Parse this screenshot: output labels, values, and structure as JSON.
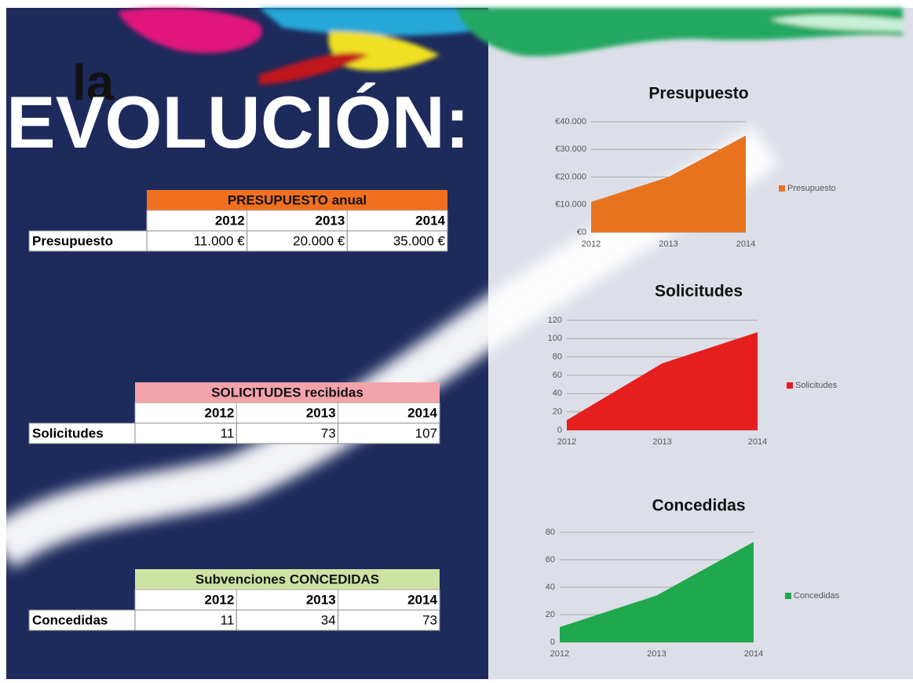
{
  "heading": {
    "line1": "la",
    "line2": "EVOLUCIÓN:"
  },
  "tables": [
    {
      "title": "PRESUPUESTO anual",
      "header_color": "#f07020",
      "columns": [
        "2012",
        "2013",
        "2014"
      ],
      "row_label": "Presupuesto",
      "cells": [
        "11.000 €",
        "20.000 €",
        "35.000 €"
      ]
    },
    {
      "title": "SOLICITUDES recibidas",
      "header_color": "#f4a3ab",
      "columns": [
        "2012",
        "2013",
        "2014"
      ],
      "row_label": "Solicitudes",
      "cells": [
        "11",
        "73",
        "107"
      ]
    },
    {
      "title": "Subvenciones CONCEDIDAS",
      "header_color": "#cde3a4",
      "columns": [
        "2012",
        "2013",
        "2014"
      ],
      "row_label": "Concedidas",
      "cells": [
        "11",
        "34",
        "73"
      ]
    }
  ],
  "chart_data": [
    {
      "type": "area",
      "title": "Presupuesto",
      "categories": [
        "2012",
        "2013",
        "2014"
      ],
      "series": [
        {
          "name": "Presupuesto",
          "color": "#e8731e",
          "values": [
            11000,
            20000,
            35000
          ]
        }
      ],
      "ylim": [
        0,
        40000
      ],
      "yticks": [
        {
          "value": 0,
          "label": "€0"
        },
        {
          "value": 10000,
          "label": "€10.000"
        },
        {
          "value": 20000,
          "label": "€20.000"
        },
        {
          "value": 30000,
          "label": "€30.000"
        },
        {
          "value": 40000,
          "label": "€40.000"
        }
      ],
      "grid": true,
      "legend": "right"
    },
    {
      "type": "area",
      "title": "Solicitudes",
      "categories": [
        "2012",
        "2013",
        "2014"
      ],
      "series": [
        {
          "name": "Solicitudes",
          "color": "#e61e1e",
          "values": [
            11,
            73,
            107
          ]
        }
      ],
      "ylim": [
        0,
        120
      ],
      "yticks": [
        0,
        20,
        40,
        60,
        80,
        100,
        120
      ],
      "grid": true,
      "legend": "right"
    },
    {
      "type": "area",
      "title": "Concedidas",
      "categories": [
        "2012",
        "2013",
        "2014"
      ],
      "series": [
        {
          "name": "Concedidas",
          "color": "#1fa84c",
          "values": [
            11,
            34,
            73
          ]
        }
      ],
      "ylim": [
        0,
        80
      ],
      "yticks": [
        0,
        20,
        40,
        60,
        80
      ],
      "grid": true,
      "legend": "right"
    }
  ]
}
